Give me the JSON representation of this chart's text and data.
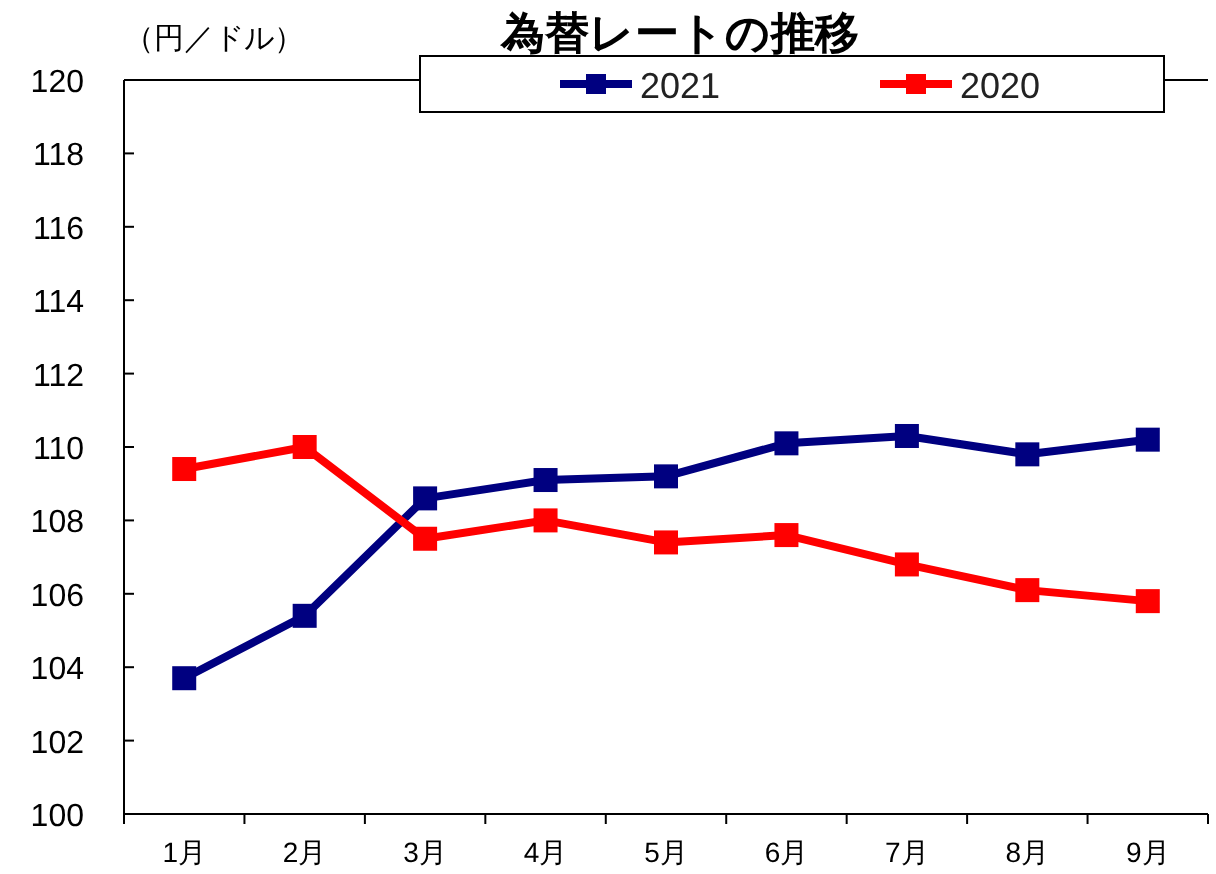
{
  "chart_data": {
    "type": "line",
    "title": "為替レートの推移",
    "ylabel": "（円／ドル）",
    "categories": [
      "1月",
      "2月",
      "3月",
      "4月",
      "5月",
      "6月",
      "7月",
      "8月",
      "9月"
    ],
    "series": [
      {
        "name": "2021",
        "color": "#000080",
        "values": [
          103.7,
          105.4,
          108.6,
          109.1,
          109.2,
          110.1,
          110.3,
          109.8,
          110.2
        ]
      },
      {
        "name": "2020",
        "color": "#ff0000",
        "values": [
          109.4,
          110.0,
          107.5,
          108.0,
          107.4,
          107.6,
          106.8,
          106.1,
          105.8
        ]
      }
    ],
    "ylim": [
      100,
      120
    ],
    "yticks": [
      100,
      102,
      104,
      106,
      108,
      110,
      112,
      114,
      116,
      118,
      120
    ],
    "grid": false,
    "legend": "top",
    "marker": "square",
    "line_style": "solid"
  }
}
